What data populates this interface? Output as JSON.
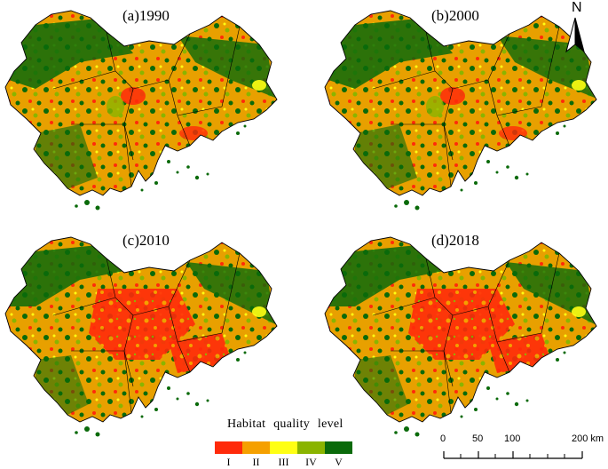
{
  "panels": [
    {
      "title": "(a)1990"
    },
    {
      "title": "(b)2000"
    },
    {
      "title": "(c)2010"
    },
    {
      "title": "(d)2018"
    }
  ],
  "north_arrow": {
    "label": "N"
  },
  "legend": {
    "title": "Habitat quality level",
    "levels": [
      {
        "label": "I",
        "color": "#ff2a0a"
      },
      {
        "label": "II",
        "color": "#f5a000"
      },
      {
        "label": "III",
        "color": "#ffff14"
      },
      {
        "label": "IV",
        "color": "#8ab400"
      },
      {
        "label": "V",
        "color": "#0a6a0a"
      }
    ]
  },
  "scale_bar": {
    "ticks": [
      "0",
      "50",
      "100",
      "200 km"
    ]
  },
  "colors": {
    "background": "#ffffff",
    "boundary": "#000000"
  }
}
